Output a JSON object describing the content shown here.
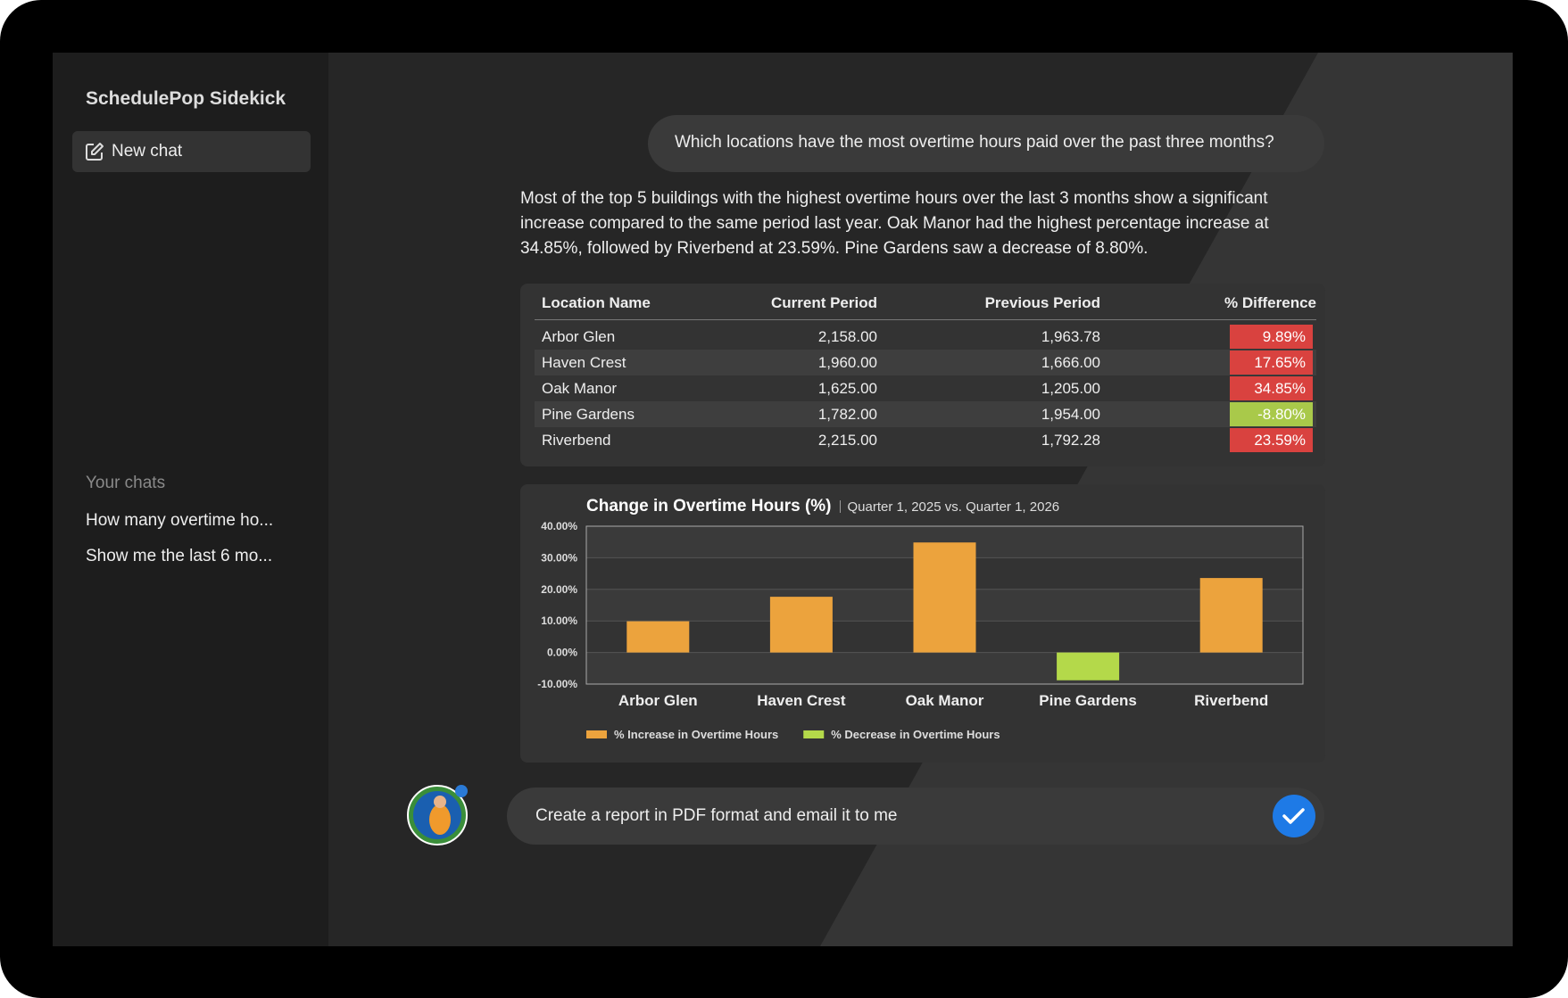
{
  "sidebar": {
    "title": "SchedulePop Sidekick",
    "new_chat": "New chat",
    "section": "Your chats",
    "chats": [
      "How many overtime ho...",
      "Show me the last 6 mo..."
    ]
  },
  "user_message": "Which locations have the most overtime hours paid over the past three months?",
  "answer": "Most of the top 5 buildings with the highest overtime hours over the last 3 months show a significant increase compared to the same period last year.  Oak Manor had the highest percentage increase at 34.85%, followed by Riverbend at 23.59%. Pine Gardens saw a decrease of 8.80%.",
  "table": {
    "columns": [
      "Location Name",
      "Current Period",
      "Previous Period",
      "% Difference"
    ],
    "rows": [
      [
        "Arbor Glen",
        "2,158.00",
        "1,963.78",
        "9.89%"
      ],
      [
        "Haven Crest",
        "1,960.00",
        "1,666.00",
        "17.65%"
      ],
      [
        "Oak Manor",
        "1,625.00",
        "1,205.00",
        "34.85%"
      ],
      [
        "Pine Gardens",
        "1,782.00",
        "1,954.00",
        "-8.80%"
      ],
      [
        "Riverbend",
        "2,215.00",
        "1,792.28",
        "23.59%"
      ]
    ]
  },
  "chart_data": {
    "type": "bar",
    "title": "Change in Overtime Hours (%)",
    "subtitle": "Quarter 1, 2025 vs. Quarter 1, 2026",
    "categories": [
      "Arbor Glen",
      "Haven Crest",
      "Oak Manor",
      "Pine Gardens",
      "Riverbend"
    ],
    "series": [
      {
        "name": "% Increase in Overtime Hours",
        "color": "#eca33d",
        "values": [
          9.89,
          17.65,
          34.85,
          null,
          23.59
        ]
      },
      {
        "name": "% Decrease in Overtime Hours",
        "color": "#b4d94a",
        "values": [
          null,
          null,
          null,
          -8.8,
          null
        ]
      }
    ],
    "ylim": [
      -10,
      40
    ],
    "yticks": [
      {
        "value": -10,
        "label": "-10.00%"
      },
      {
        "value": 0,
        "label": "0.00%"
      },
      {
        "value": 10,
        "label": "10.00%"
      },
      {
        "value": 20,
        "label": "20.00%"
      },
      {
        "value": 30,
        "label": "30.00%"
      },
      {
        "value": 40,
        "label": "40.00%"
      }
    ],
    "grid": true,
    "legend": "bottom-left"
  },
  "input": "Create a report in PDF format and email it to me"
}
